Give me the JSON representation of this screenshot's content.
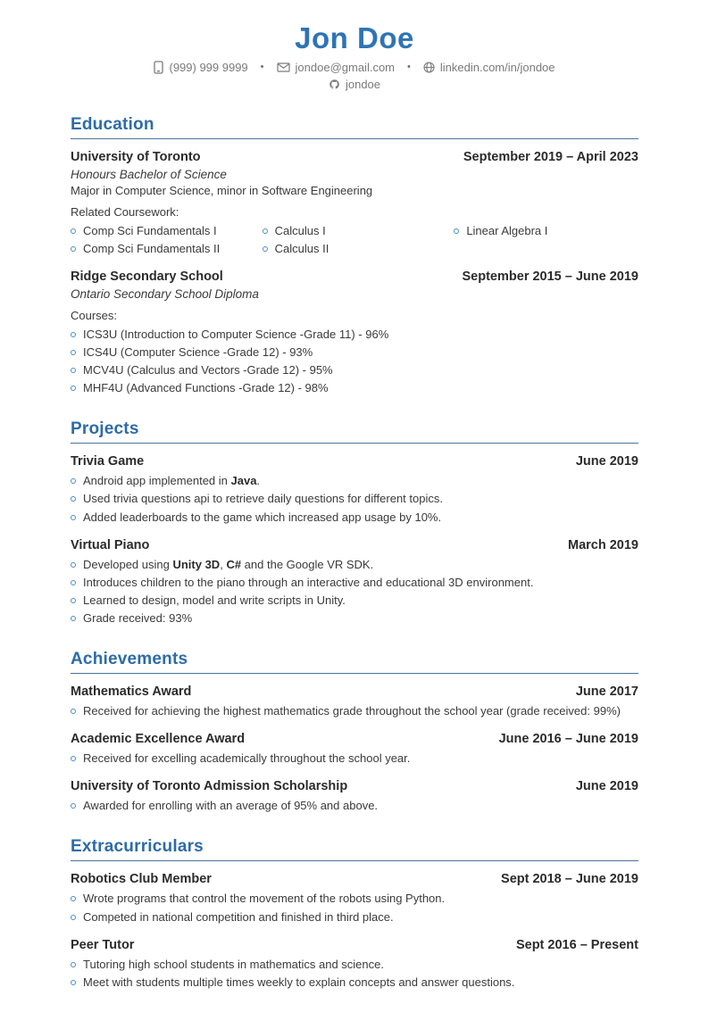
{
  "header": {
    "name": "Jon Doe",
    "contact": {
      "phone": "(999) 999 9999",
      "email": "jondoe@gmail.com",
      "linkedin": "linkedin.com/in/jondoe",
      "github": "jondoe",
      "separator": "•"
    },
    "icons": {
      "phone": "phone-icon",
      "email": "envelope-icon",
      "linkedin": "globe-icon",
      "github": "github-icon"
    }
  },
  "colors": {
    "accent_name_blue": "#2e74b5",
    "section_heading_blue": "#2d6ba8",
    "bullet_circle_blue": "#4a8ccc",
    "body_text": "#3a3a3a",
    "contact_gray": "#7a7a7a"
  },
  "sections": [
    {
      "id": "education",
      "title": "Education",
      "entries": [
        {
          "title": "University of Toronto",
          "date": "September 2019 – April 2023",
          "italic": "Honours Bachelor of Science",
          "line": "Major in Computer Science, minor in Software Engineering",
          "label": "Related Coursework:",
          "bullet_columns": 3,
          "bullets": [
            "Comp Sci Fundamentals I",
            "Comp Sci Fundamentals II",
            "Calculus I",
            "Calculus II",
            "Linear Algebra I"
          ]
        },
        {
          "title": "Ridge Secondary School",
          "date": "September 2015 – June 2019",
          "italic": "Ontario Secondary School Diploma",
          "label": "Courses:",
          "bullet_columns": 1,
          "bullets": [
            "ICS3U (Introduction to Computer Science -Grade 11) - 96%",
            "ICS4U (Computer Science -Grade 12) - 93%",
            "MCV4U (Calculus and Vectors -Grade 12) - 95%",
            "MHF4U (Advanced Functions -Grade 12) - 98%"
          ]
        }
      ]
    },
    {
      "id": "projects",
      "title": "Projects",
      "entries": [
        {
          "title": "Trivia Game",
          "date": "June 2019",
          "bullet_columns": 1,
          "bullets": [
            "Android app implemented in **Java**.",
            "Used trivia questions api to retrieve daily questions for different topics.",
            "Added leaderboards to the game which increased app usage by 10%."
          ]
        },
        {
          "title": "Virtual Piano",
          "date": "March 2019",
          "bullet_columns": 1,
          "bullets": [
            "Developed using **Unity 3D**, **C#** and the Google VR SDK.",
            "Introduces children to the piano through an interactive and educational 3D environment.",
            "Learned to design, model and write scripts in Unity.",
            "Grade received: 93%"
          ]
        }
      ]
    },
    {
      "id": "achievements",
      "title": "Achievements",
      "entries": [
        {
          "title": "Mathematics Award",
          "date": "June 2017",
          "bullet_columns": 1,
          "bullets": [
            "Received for achieving the highest mathematics grade throughout the school year (grade received: 99%)"
          ]
        },
        {
          "title": "Academic Excellence Award",
          "date": "June 2016 – June 2019",
          "bullet_columns": 1,
          "bullets": [
            "Received for excelling academically throughout the school year."
          ]
        },
        {
          "title": "University of Toronto Admission Scholarship",
          "date": "June 2019",
          "bullet_columns": 1,
          "bullets": [
            "Awarded for enrolling with an average of 95% and above."
          ]
        }
      ]
    },
    {
      "id": "extracurriculars",
      "title": "Extracurriculars",
      "entries": [
        {
          "title": "Robotics Club Member",
          "date": "Sept 2018 – June 2019",
          "bullet_columns": 1,
          "bullets": [
            "Wrote programs that control the movement of the robots using Python.",
            "Competed in national competition and finished in third place."
          ]
        },
        {
          "title": "Peer Tutor",
          "date": "Sept 2016 – Present",
          "bullet_columns": 1,
          "bullets": [
            "Tutoring high school students in mathematics and science.",
            "Meet with students multiple times weekly to explain concepts and answer questions."
          ]
        }
      ]
    }
  ]
}
